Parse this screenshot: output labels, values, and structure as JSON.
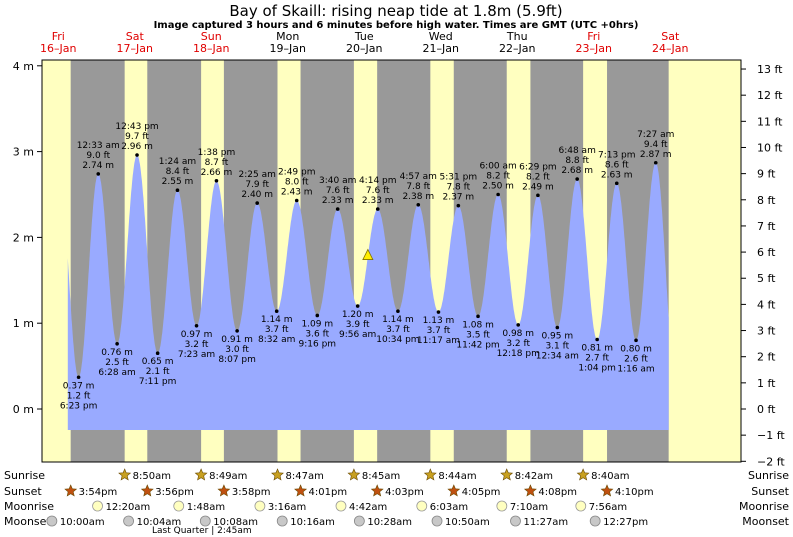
{
  "title": "Bay of Skaill: rising  neap tide at 1.8m (5.9ft)",
  "subtitle": "Image captured 3 hours and 6 minutes before high water. Times are GMT (UTC +0hrs)",
  "days": [
    {
      "dow": "Fri",
      "date": "16–Jan",
      "red": true
    },
    {
      "dow": "Sat",
      "date": "17–Jan",
      "red": true
    },
    {
      "dow": "Sun",
      "date": "18–Jan",
      "red": true
    },
    {
      "dow": "Mon",
      "date": "19–Jan",
      "red": false
    },
    {
      "dow": "Tue",
      "date": "20–Jan",
      "red": false
    },
    {
      "dow": "Wed",
      "date": "21–Jan",
      "red": false
    },
    {
      "dow": "Thu",
      "date": "22–Jan",
      "red": false
    },
    {
      "dow": "Fri",
      "date": "23–Jan",
      "red": true
    },
    {
      "dow": "Sat",
      "date": "24–Jan",
      "red": true
    }
  ],
  "chart_data": {
    "type": "area",
    "title": "Bay of Skaill: rising  neap tide at 1.8m (5.9ft)",
    "y_left_unit": "m",
    "y_left_ticks": [
      "4 m",
      "3 m",
      "2 m",
      "1 m",
      "0 m"
    ],
    "y_right_ticks": [
      "13 ft",
      "12 ft",
      "11 ft",
      "10 ft",
      "9 ft",
      "8 ft",
      "7 ft",
      "6 ft",
      "5 ft",
      "4 ft",
      "3 ft",
      "2 ft",
      "1 ft",
      "0 ft",
      "−1 ft",
      "−2 ft"
    ],
    "ylim_m": [
      -0.61,
      4.27
    ],
    "tides": [
      {
        "type": "low",
        "time": "16–Jan 6:23 pm",
        "label": "6:23 pm",
        "m": 0.37,
        "m_label": "0.37 m",
        "ft": "1.2 ft"
      },
      {
        "type": "high",
        "time": "17–Jan 12:33 am",
        "label": "12:33 am",
        "m": 2.74,
        "m_label": "2.74 m",
        "ft": "9.0 ft"
      },
      {
        "type": "low",
        "time": "17–Jan 6:28 am",
        "label": "6:28 am",
        "m": 0.76,
        "m_label": "0.76 m",
        "ft": "2.5 ft"
      },
      {
        "type": "high",
        "time": "17–Jan 12:43 pm",
        "label": "12:43 pm",
        "m": 2.96,
        "m_label": "2.96 m",
        "ft": "9.7 ft"
      },
      {
        "type": "low",
        "time": "17–Jan 7:11 pm",
        "label": "7:11 pm",
        "m": 0.65,
        "m_label": "0.65 m",
        "ft": "2.1 ft"
      },
      {
        "type": "high",
        "time": "18–Jan 1:24 am",
        "label": "1:24 am",
        "m": 2.55,
        "m_label": "2.55 m",
        "ft": "8.4 ft"
      },
      {
        "type": "low",
        "time": "18–Jan 7:23 am",
        "label": "7:23 am",
        "m": 0.97,
        "m_label": "0.97 m",
        "ft": "3.2 ft"
      },
      {
        "type": "high",
        "time": "18–Jan 1:38 pm",
        "label": "1:38 pm",
        "m": 2.66,
        "m_label": "2.66 m",
        "ft": "8.7 ft"
      },
      {
        "type": "low",
        "time": "18–Jan 8:07 pm",
        "label": "8:07 pm",
        "m": 0.91,
        "m_label": "0.91 m",
        "ft": "3.0 ft"
      },
      {
        "type": "high",
        "time": "19–Jan 2:25 am",
        "label": "2:25 am",
        "m": 2.4,
        "m_label": "2.40 m",
        "ft": "7.9 ft"
      },
      {
        "type": "low",
        "time": "19–Jan 8:32 am",
        "label": "8:32 am",
        "m": 1.14,
        "m_label": "1.14 m",
        "ft": "3.7 ft"
      },
      {
        "type": "high",
        "time": "19–Jan 2:49 pm",
        "label": "2:49 pm",
        "m": 2.43,
        "m_label": "2.43 m",
        "ft": "8.0 ft"
      },
      {
        "type": "low",
        "time": "19–Jan 9:16 pm",
        "label": "9:16 pm",
        "m": 1.09,
        "m_label": "1.09 m",
        "ft": "3.6 ft"
      },
      {
        "type": "high",
        "time": "20–Jan 3:40 am",
        "label": "3:40 am",
        "m": 2.33,
        "m_label": "2.33 m",
        "ft": "7.6 ft"
      },
      {
        "type": "low",
        "time": "20–Jan 9:56 am",
        "label": "9:56 am",
        "m": 1.2,
        "m_label": "1.20 m",
        "ft": "3.9 ft"
      },
      {
        "type": "high",
        "time": "20–Jan 4:14 pm",
        "label": "4:14 pm",
        "m": 2.33,
        "m_label": "2.33 m",
        "ft": "7.6 ft"
      },
      {
        "type": "low",
        "time": "20–Jan 10:34 pm",
        "label": "10:34 pm",
        "m": 1.14,
        "m_label": "1.14 m",
        "ft": "3.7 ft"
      },
      {
        "type": "high",
        "time": "21–Jan 4:57 am",
        "label": "4:57 am",
        "m": 2.38,
        "m_label": "2.38 m",
        "ft": "7.8 ft"
      },
      {
        "type": "low",
        "time": "21–Jan 11:17 am",
        "label": "11:17 am",
        "m": 1.13,
        "m_label": "1.13 m",
        "ft": "3.7 ft"
      },
      {
        "type": "high",
        "time": "21–Jan 5:31 pm",
        "label": "5:31 pm",
        "m": 2.37,
        "m_label": "2.37 m",
        "ft": "7.8 ft"
      },
      {
        "type": "low",
        "time": "21–Jan 11:42 pm",
        "label": "11:42 pm",
        "m": 1.08,
        "m_label": "1.08 m",
        "ft": "3.5 ft"
      },
      {
        "type": "high",
        "time": "22–Jan 6:00 am",
        "label": "6:00 am",
        "m": 2.5,
        "m_label": "2.50 m",
        "ft": "8.2 ft"
      },
      {
        "type": "low",
        "time": "22–Jan 12:18 pm",
        "label": "12:18 pm",
        "m": 0.98,
        "m_label": "0.98 m",
        "ft": "3.2 ft"
      },
      {
        "type": "high",
        "time": "22–Jan 6:29 pm",
        "label": "6:29 pm",
        "m": 2.49,
        "m_label": "2.49 m",
        "ft": "8.2 ft"
      },
      {
        "type": "low",
        "time": "23–Jan 12:34 am",
        "label": "12:34 am",
        "m": 0.95,
        "m_label": "0.95 m",
        "ft": "3.1 ft"
      },
      {
        "type": "high",
        "time": "23–Jan 6:48 am",
        "label": "6:48 am",
        "m": 2.68,
        "m_label": "2.68 m",
        "ft": "8.8 ft"
      },
      {
        "type": "low",
        "time": "23–Jan 1:04 pm",
        "label": "1:04 pm",
        "m": 0.81,
        "m_label": "0.81 m",
        "ft": "2.7 ft"
      },
      {
        "type": "high",
        "time": "23–Jan 7:13 pm",
        "label": "7:13 pm",
        "m": 2.63,
        "m_label": "2.63 m",
        "ft": "8.6 ft"
      },
      {
        "type": "low",
        "time": "24–Jan 1:16 am",
        "label": "1:16 am",
        "m": 0.8,
        "m_label": "0.80 m",
        "ft": "2.6 ft"
      },
      {
        "type": "high",
        "time": "24–Jan 7:27 am",
        "label": "7:27 am",
        "m": 2.87,
        "m_label": "2.87 m",
        "ft": "9.4 ft"
      }
    ],
    "current": {
      "time": "20–Jan 1:08 pm",
      "m": 1.8
    },
    "chart_start": "16–Jan 3:00 pm",
    "chart_end": "24–Jan 11:30 am"
  },
  "rows": {
    "sunrise": {
      "label": "Sunrise",
      "times": [
        "17–Jan 8:50am",
        "18–Jan 8:49am",
        "19–Jan 8:47am",
        "20–Jan 8:45am",
        "21–Jan 8:44am",
        "22–Jan 8:42am",
        "23–Jan 8:40am"
      ]
    },
    "sunset": {
      "label": "Sunset",
      "times": [
        "16–Jan 3:54pm",
        "17–Jan 3:56pm",
        "18–Jan 3:58pm",
        "19–Jan 4:01pm",
        "20–Jan 4:03pm",
        "21–Jan 4:05pm",
        "22–Jan 4:08pm",
        "23–Jan 4:10pm"
      ]
    },
    "moonrise": {
      "label": "Moonrise",
      "times": [
        "17–Jan 12:20am",
        "18–Jan 1:48am",
        "19–Jan 3:16am",
        "20–Jan 4:42am",
        "21–Jan 6:03am",
        "22–Jan 7:10am",
        "23–Jan 7:56am"
      ]
    },
    "moonset": {
      "label": "Moonset",
      "times": [
        "16–Jan 10:00am",
        "17–Jan 10:04am",
        "18–Jan 10:08am",
        "19–Jan 10:16am",
        "20–Jan 10:28am",
        "21–Jan 10:50am",
        "22–Jan 11:27am",
        "23–Jan 12:27pm"
      ]
    }
  },
  "moon_phase": "Last Quarter | 2:45am",
  "colors": {
    "night": "#999999",
    "day": "#ffffc0",
    "water": "#99aaff",
    "sun_star": "#c8a020",
    "sunset_star": "#c05010",
    "moon_rise": "#ffffc0",
    "moon_set": "#c8c8c8",
    "current_marker": "#ffee00"
  }
}
